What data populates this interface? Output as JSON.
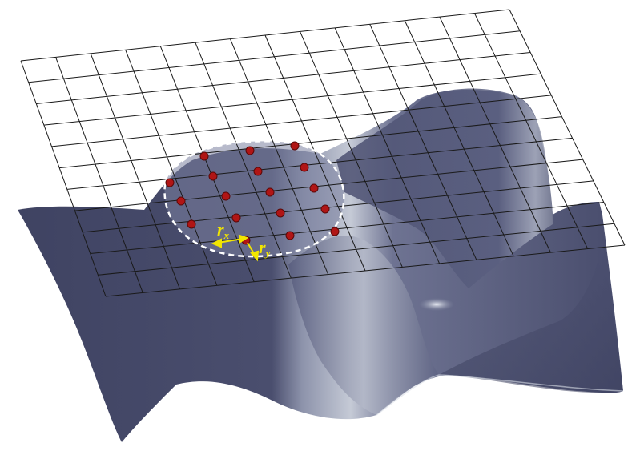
{
  "figure": {
    "labels": {
      "rx_main": "r",
      "rx_sub": "x",
      "ry_main": "r",
      "ry_sub": "y"
    },
    "colors": {
      "surface_dark": "#4a4e6e",
      "surface_mid": "#6b7090",
      "surface_light": "#c9ced8",
      "grid_line": "#1a1a1a",
      "sample_point": "#b01515",
      "ellipse_boundary": "#ffffff",
      "radius_arrow": "#f2e600"
    },
    "grid": {
      "rows": 11,
      "columns": 14
    },
    "sample_point_count": 18,
    "boundary_style": "dashed ellipse"
  }
}
